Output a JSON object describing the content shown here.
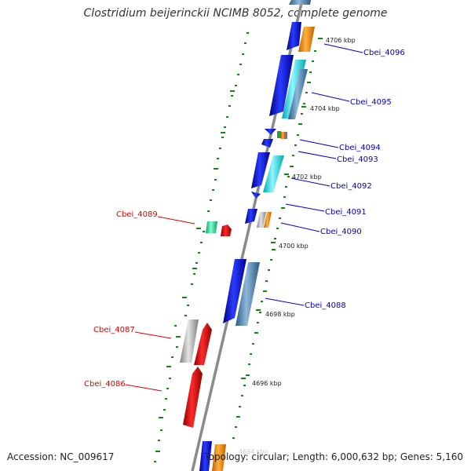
{
  "title": "Clostridium beijerinckii NCIMB 8052, complete genome",
  "accession": "Accession: NC_009617",
  "summary": "Topology: circular; Length: 6,000,632 bp; Genes: 5,160",
  "colors": {
    "forward_label": "#0000cc",
    "reverse_label": "#dd0000",
    "backbone": "#888888",
    "ticks": "#118811"
  },
  "kbp_labels": [
    "4706 kbp",
    "4704 kbp",
    "4702 kbp",
    "4700 kbp",
    "4698 kbp",
    "4696 kbp"
  ],
  "genes": [
    {
      "label": "Cbei_4096",
      "strand": "forward"
    },
    {
      "label": "Cbei_4095",
      "strand": "forward"
    },
    {
      "label": "Cbei_4094",
      "strand": "forward"
    },
    {
      "label": "Cbei_4093",
      "strand": "forward"
    },
    {
      "label": "Cbei_4092",
      "strand": "forward"
    },
    {
      "label": "Cbei_4091",
      "strand": "forward"
    },
    {
      "label": "Cbei_4090",
      "strand": "forward"
    },
    {
      "label": "Cbei_4089",
      "strand": "reverse"
    },
    {
      "label": "Cbei_4088",
      "strand": "forward"
    },
    {
      "label": "Cbei_4087",
      "strand": "reverse"
    },
    {
      "label": "Cbei_4086",
      "strand": "reverse"
    }
  ]
}
